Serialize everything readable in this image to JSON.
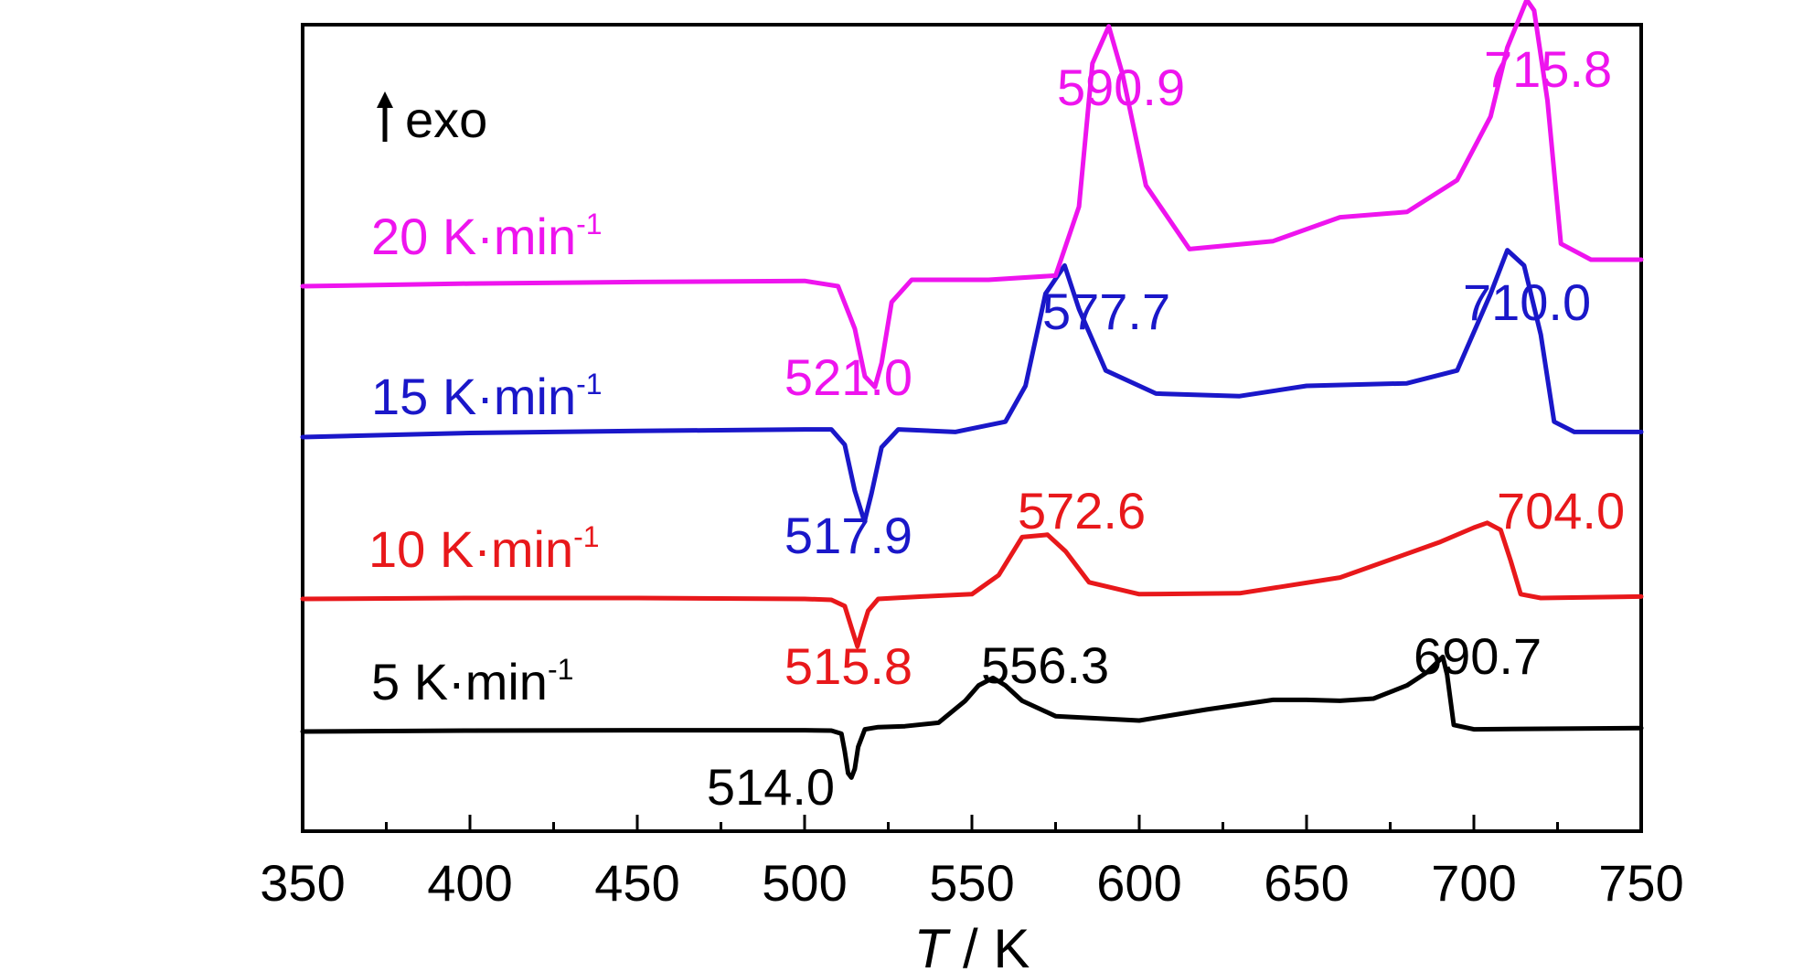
{
  "chart_data": {
    "type": "line",
    "title": "",
    "xlabel_italic": "T",
    "xlabel_rest": " / K",
    "ylabel": "",
    "xlim": [
      350,
      750
    ],
    "xticks": [
      350,
      400,
      450,
      500,
      550,
      600,
      650,
      700,
      750
    ],
    "minor_tick_step": 25,
    "grid": false,
    "exo_label": "exo",
    "series": [
      {
        "name": "5 K·min",
        "name_exp": "-1",
        "color": "#000000",
        "x": [
          350,
          400,
          450,
          500,
          508,
          511,
          512,
          513,
          514,
          515,
          516,
          518,
          522,
          530,
          540,
          548,
          552,
          556.3,
          560,
          565,
          575,
          600,
          620,
          640,
          650,
          660,
          670,
          680,
          686,
          690.7,
          692,
          694,
          700,
          750
        ],
        "y": [
          0,
          0.02,
          0.03,
          0.03,
          0.02,
          -0.05,
          -0.45,
          -0.95,
          -1.05,
          -0.85,
          -0.35,
          0.05,
          0.1,
          0.12,
          0.2,
          0.7,
          1.05,
          1.22,
          1.05,
          0.7,
          0.35,
          0.25,
          0.5,
          0.72,
          0.72,
          0.7,
          0.75,
          1.05,
          1.35,
          1.7,
          1.3,
          0.15,
          0.05,
          0.08
        ],
        "peaks": [
          {
            "label": "514.0",
            "x": 514.0,
            "y": -1.05
          },
          {
            "label": "556.3",
            "x": 556.3,
            "y": 1.22
          },
          {
            "label": "690.7",
            "x": 690.7,
            "y": 1.7
          }
        ]
      },
      {
        "name": "10 K·min",
        "name_exp": "-1",
        "color": "#e8181b",
        "x": [
          350,
          400,
          450,
          500,
          508,
          512,
          514,
          515.8,
          517,
          519,
          522,
          535,
          550,
          558,
          565,
          572.6,
          578,
          585,
          600,
          630,
          660,
          690,
          700,
          704.0,
          708,
          711,
          714,
          720,
          750
        ],
        "y": [
          0,
          0.02,
          0.02,
          0.0,
          -0.02,
          -0.15,
          -0.6,
          -1.0,
          -0.7,
          -0.25,
          0.0,
          0.05,
          0.1,
          0.5,
          1.3,
          1.35,
          1.0,
          0.35,
          0.1,
          0.12,
          0.45,
          1.2,
          1.5,
          1.6,
          1.45,
          0.8,
          0.1,
          0.02,
          0.05
        ],
        "peaks": [
          {
            "label": "515.8",
            "x": 515.8,
            "y": -1.0
          },
          {
            "label": "572.6",
            "x": 572.6,
            "y": 1.35
          },
          {
            "label": "704.0",
            "x": 704.0,
            "y": 1.6
          }
        ]
      },
      {
        "name": "15 K·min",
        "name_exp": "-1",
        "color": "#1a17c9",
        "x": [
          350,
          400,
          450,
          500,
          508,
          512,
          515,
          517.9,
          520,
          523,
          528,
          545,
          560,
          566,
          572,
          577.7,
          582,
          590,
          605,
          630,
          650,
          680,
          695,
          705,
          710.0,
          715,
          720,
          724,
          730,
          750
        ],
        "y": [
          0,
          0.08,
          0.12,
          0.15,
          0.15,
          -0.15,
          -1.05,
          -1.65,
          -1.1,
          -0.2,
          0.15,
          0.1,
          0.3,
          1.0,
          2.8,
          3.35,
          2.5,
          1.3,
          0.85,
          0.8,
          1.0,
          1.05,
          1.3,
          2.8,
          3.65,
          3.35,
          2.0,
          0.3,
          0.1,
          0.1
        ],
        "peaks": [
          {
            "label": "517.9",
            "x": 517.9,
            "y": -1.65
          },
          {
            "label": "577.7",
            "x": 577.7,
            "y": 3.35
          },
          {
            "label": "710.0",
            "x": 710.0,
            "y": 3.65
          }
        ]
      },
      {
        "name": "20 K·min",
        "name_exp": "-1",
        "color": "#ee14ee",
        "x": [
          350,
          400,
          450,
          500,
          510,
          515,
          518,
          521.0,
          523,
          526,
          532,
          555,
          575,
          582,
          586,
          590.9,
          595,
          602,
          615,
          640,
          660,
          680,
          695,
          705,
          710,
          715.8,
          718,
          722,
          726,
          735,
          750
        ],
        "y": [
          0,
          0.05,
          0.08,
          0.1,
          0.0,
          -0.8,
          -1.7,
          -1.9,
          -1.45,
          -0.3,
          0.12,
          0.12,
          0.2,
          1.5,
          4.2,
          4.9,
          4.0,
          1.9,
          0.7,
          0.85,
          1.3,
          1.4,
          2.0,
          3.2,
          4.5,
          5.4,
          5.2,
          3.5,
          0.8,
          0.5,
          0.5
        ],
        "peaks": [
          {
            "label": "521.0",
            "x": 521.0,
            "y": -1.9
          },
          {
            "label": "590.9",
            "x": 590.9,
            "y": 4.9
          },
          {
            "label": "715.8",
            "x": 715.8,
            "y": 5.4
          }
        ]
      }
    ]
  }
}
